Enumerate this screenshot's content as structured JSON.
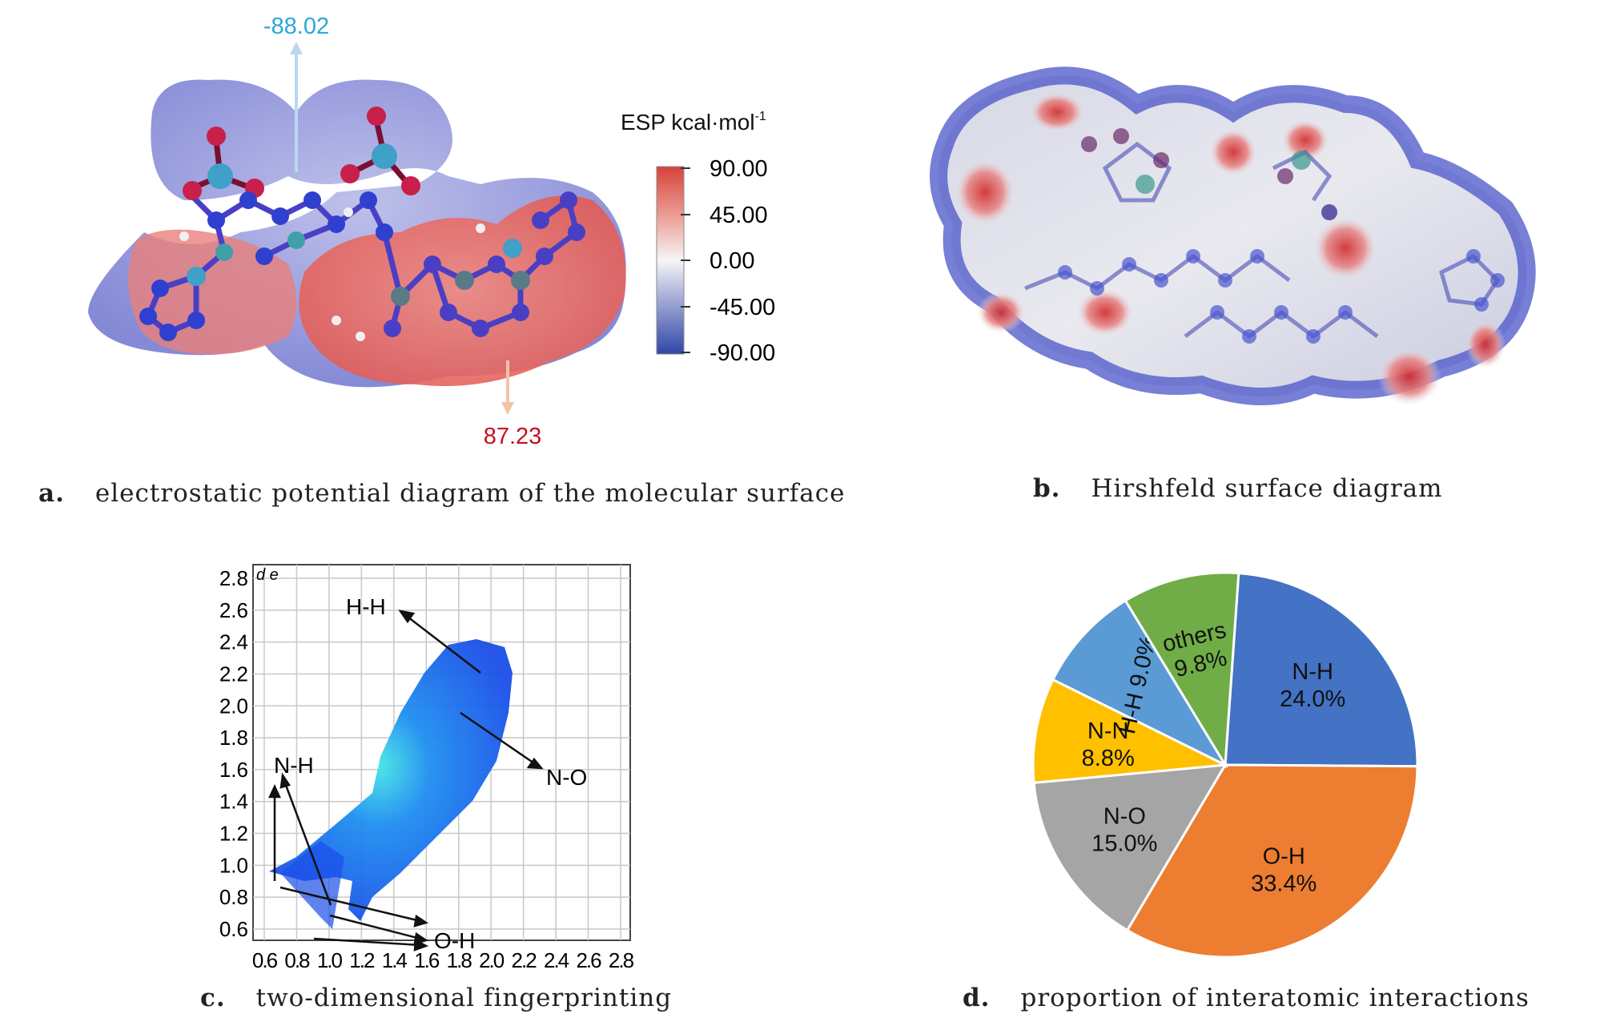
{
  "panel_a": {
    "caption_letter": "a.",
    "caption_text": "electrostatic potential diagram of the molecular surface",
    "min_value": "-88.02",
    "max_value": "87.23",
    "legend_title": "ESP kcal·mol",
    "legend_sup": "-1",
    "legend_ticks": [
      "90.00",
      "45.00",
      "0.00",
      "-45.00",
      "-90.00"
    ],
    "colors": {
      "positive": "#e05a52",
      "negative": "#3a4fb8",
      "neutral": "#f4f2f2"
    }
  },
  "panel_b": {
    "caption_letter": "b.",
    "caption_text": "Hirshfeld surface diagram"
  },
  "panel_c": {
    "caption_letter": "c.",
    "caption_text": "two-dimensional fingerprinting",
    "axis_label": "d e",
    "y_ticks": [
      "2.8",
      "2.6",
      "2.4",
      "2.2",
      "2.0",
      "1.8",
      "1.6",
      "1.4",
      "1.2",
      "1.0",
      "0.8",
      "0.6"
    ],
    "x_ticks": [
      "0.6",
      "0.8",
      "1.0",
      "1.2",
      "1.4",
      "1.6",
      "1.8",
      "2.0",
      "2.2",
      "2.4",
      "2.6",
      "2.8"
    ],
    "annotations": [
      "H-H",
      "N-H",
      "N-O",
      "O-H"
    ]
  },
  "panel_d": {
    "caption_letter": "d.",
    "caption_text": "proportion of interatomic interactions"
  },
  "chart_data": [
    {
      "type": "scatter",
      "title": "",
      "xlabel": "",
      "ylabel": "d e",
      "xlim": [
        0.6,
        2.8
      ],
      "ylim": [
        0.6,
        2.8
      ],
      "grid": true,
      "annotations": [
        {
          "label": "H-H",
          "x": 1.2,
          "y": 2.6
        },
        {
          "label": "N-H",
          "x": 0.8,
          "y": 1.8
        },
        {
          "label": "N-O",
          "x": 2.2,
          "y": 1.7
        },
        {
          "label": "O-H",
          "x": 1.7,
          "y": 0.85
        }
      ]
    },
    {
      "type": "pie",
      "title": "",
      "labels": [
        "N-H",
        "O-H",
        "N-O",
        "N-N",
        "H-H",
        "others"
      ],
      "values": [
        24.0,
        33.4,
        15.0,
        8.8,
        9.0,
        9.8
      ],
      "value_labels": [
        "24.0%",
        "33.4%",
        "15.0%",
        "8.8%",
        "9.0%",
        "9.8%"
      ],
      "colors": [
        "#4472c4",
        "#ed7d31",
        "#a5a5a5",
        "#ffc000",
        "#5b9bd5",
        "#70ad47"
      ]
    }
  ]
}
